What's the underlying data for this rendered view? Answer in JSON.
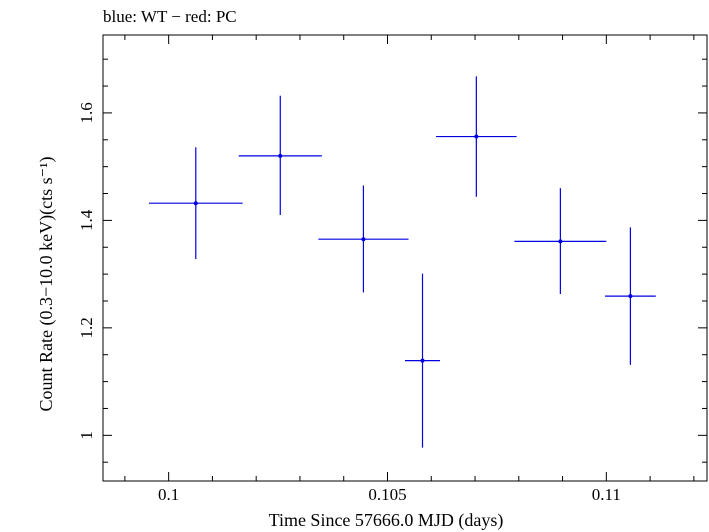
{
  "chart_data": {
    "type": "scatter",
    "title": "blue: WT − red: PC",
    "xlabel": "Time Since 57666.0 MJD (days)",
    "ylabel": "Count Rate (0.3−10.0 keV)(cts s⁻¹)",
    "xlim": [
      0.0985,
      0.1123
    ],
    "ylim": [
      0.915,
      1.745
    ],
    "x_ticks": [
      0.1,
      0.105,
      0.11
    ],
    "x_tick_labels": [
      "0.1",
      "0.105",
      "0.11"
    ],
    "y_ticks": [
      1.0,
      1.2,
      1.4,
      1.6
    ],
    "y_tick_labels": [
      "1",
      "1.2",
      "1.4",
      "1.6"
    ],
    "grid": false,
    "series": [
      {
        "name": "WT",
        "color": "#0000e0",
        "points": [
          {
            "x": 0.10062,
            "xerr": 0.00107,
            "y": 1.432,
            "yerr_low": 0.104,
            "yerr_high": 0.104
          },
          {
            "x": 0.10255,
            "xerr": 0.00095,
            "y": 1.52,
            "yerr_low": 0.11,
            "yerr_high": 0.112
          },
          {
            "x": 0.10445,
            "xerr": 0.00103,
            "y": 1.365,
            "yerr_low": 0.099,
            "yerr_high": 0.1
          },
          {
            "x": 0.1058,
            "xerr": 0.0004,
            "y": 1.139,
            "yerr_low": 0.162,
            "yerr_high": 0.162
          },
          {
            "x": 0.10703,
            "xerr": 0.00092,
            "y": 1.556,
            "yerr_low": 0.112,
            "yerr_high": 0.112
          },
          {
            "x": 0.10895,
            "xerr": 0.00105,
            "y": 1.361,
            "yerr_low": 0.098,
            "yerr_high": 0.099
          },
          {
            "x": 0.11055,
            "xerr": 0.00058,
            "y": 1.259,
            "yerr_low": 0.128,
            "yerr_high": 0.128
          }
        ]
      }
    ]
  }
}
